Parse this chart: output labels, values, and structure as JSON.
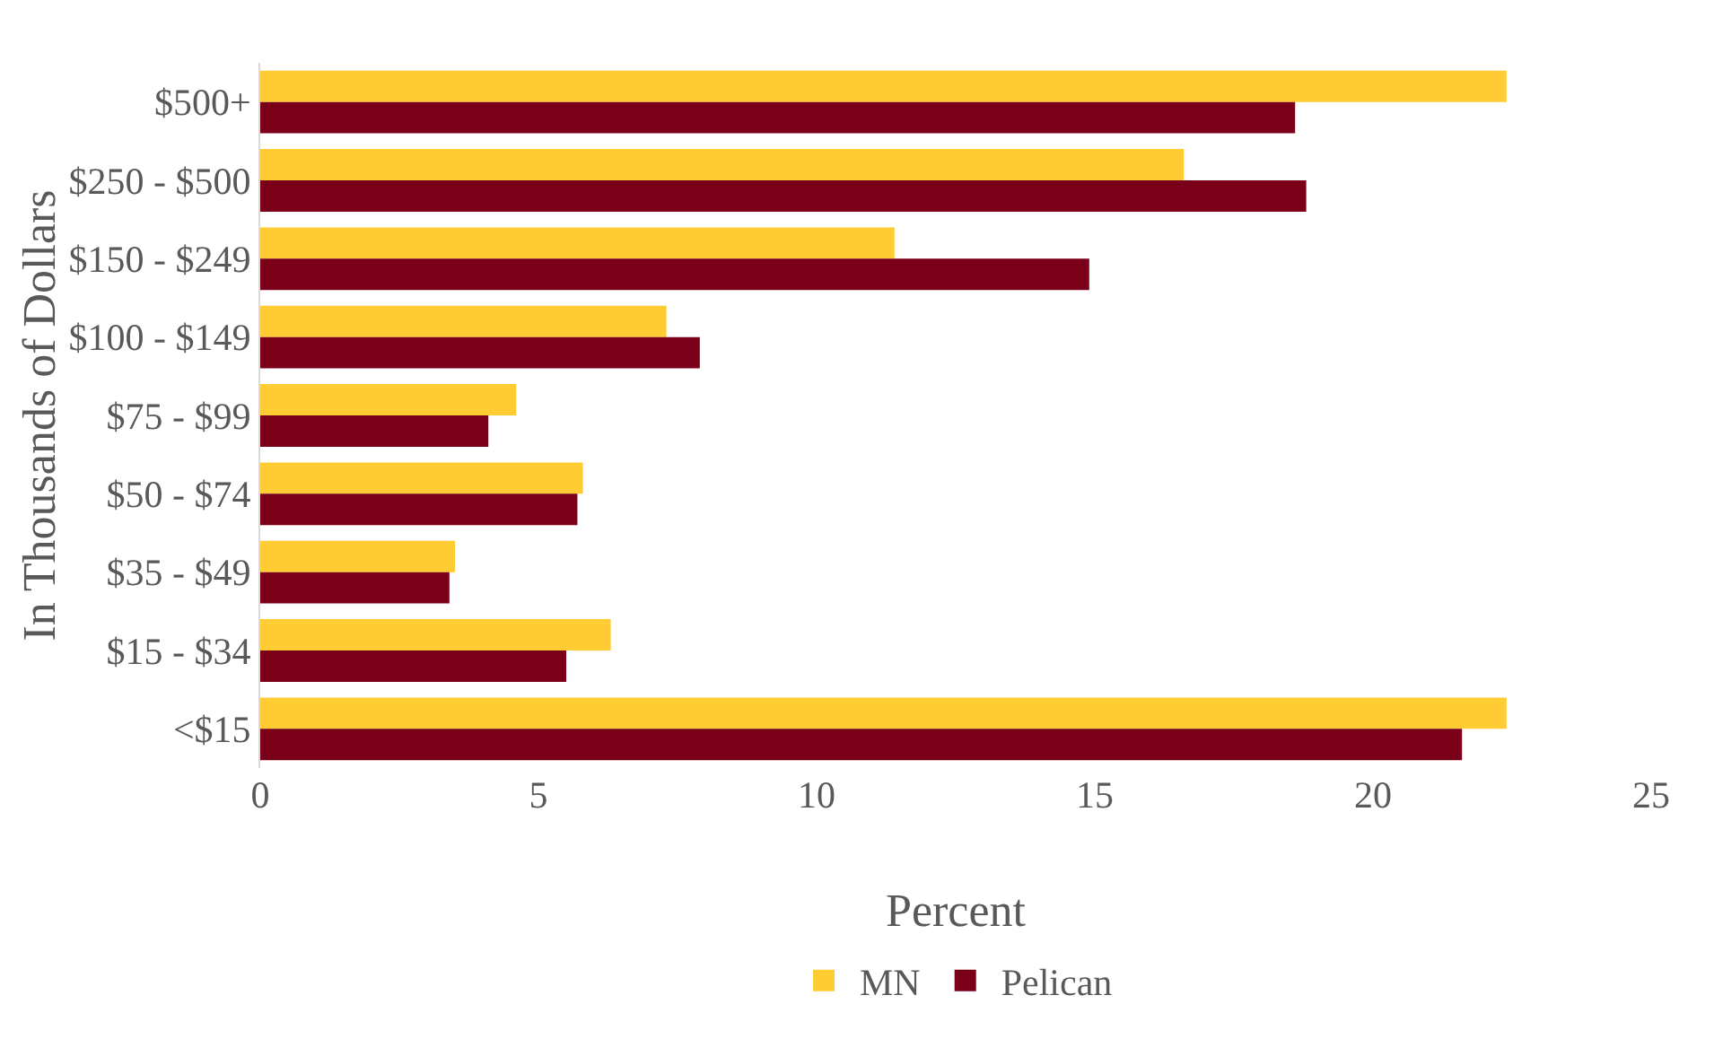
{
  "chart_data": {
    "type": "bar",
    "orientation": "horizontal",
    "xlabel": "Percent",
    "ylabel": "In Thousands of Dollars",
    "categories": [
      "$500+",
      "$250 - $500",
      "$150 - $249",
      "$100 - $149",
      "$75 - $99",
      "$50 - $74",
      "$35 - $49",
      "$15 - $34",
      "<$15"
    ],
    "series": [
      {
        "name": "MN",
        "color": "#ffcc33",
        "values": [
          22.4,
          16.6,
          11.4,
          7.3,
          4.6,
          5.8,
          3.5,
          6.3,
          22.4
        ]
      },
      {
        "name": "Pelican",
        "color": "#7a0019",
        "values": [
          18.6,
          18.8,
          14.9,
          7.9,
          4.1,
          5.7,
          3.4,
          5.5,
          21.6
        ]
      }
    ],
    "xlim": [
      0,
      25
    ],
    "xticks": [
      0,
      5,
      10,
      15,
      20,
      25
    ],
    "grid": false,
    "legend": "bottom"
  }
}
